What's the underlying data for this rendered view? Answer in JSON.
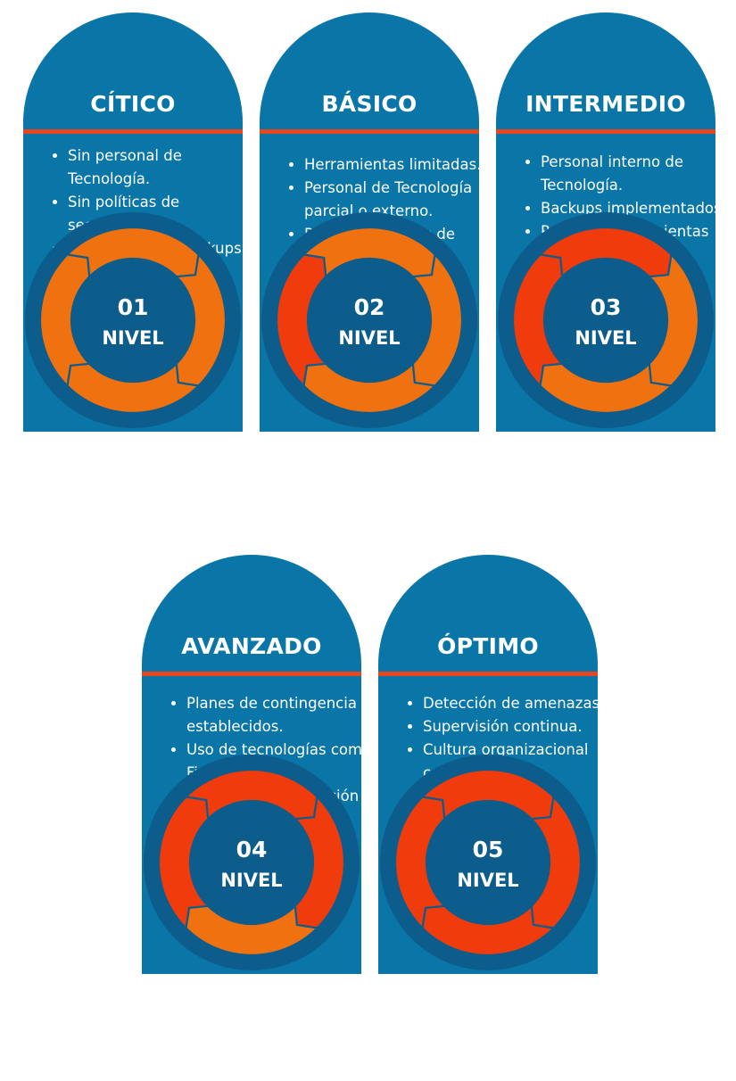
{
  "levels": [
    {
      "title": "CÍTICO",
      "bullets": [
        "Sin personal de Tecnología.",
        "Sin políticas de seguridad.",
        "Sin sistema de backups."
      ],
      "number": "01",
      "label": "NIVEL"
    },
    {
      "title": "BÁSICO",
      "bullets": [
        "Herramientas limitadas.",
        "Personal de Tecnología parcial o externo.",
        "Políticas mínimas de seguridad."
      ],
      "number": "02",
      "label": "NIVEL"
    },
    {
      "title": "INTERMEDIO",
      "bullets": [
        "Personal interno de Tecnología.",
        "Backups implementados.",
        "Primeras herramientas de protección."
      ],
      "number": "03",
      "label": "NIVEL"
    },
    {
      "title": "AVANZADO",
      "bullets": [
        "Planes de contingencia establecidos.",
        "Uso de tecnologías como Firewall.",
        "Procesos de evaluación periódica."
      ],
      "number": "04",
      "label": "NIVEL"
    },
    {
      "title": "ÓPTIMO",
      "bullets": [
        "Detección de amenazas.",
        "Supervisión continua.",
        "Cultura organizacional",
        "centrada en la seguridad."
      ],
      "number": "05",
      "label": "NIVEL"
    }
  ],
  "colors": {
    "card": "#0a76a8",
    "ring_outer": "#0c5c8c",
    "inner_circle": "#0c5c8c",
    "divider": "#e8461f",
    "segment_orange": "#f07110",
    "segment_red": "#f03c0c"
  },
  "progress": [
    {
      "filled_segments": 0,
      "total_segments": 4
    },
    {
      "filled_segments": 1,
      "total_segments": 4
    },
    {
      "filled_segments": 2,
      "total_segments": 4
    },
    {
      "filled_segments": 3,
      "total_segments": 4
    },
    {
      "filled_segments": 4,
      "total_segments": 4
    }
  ]
}
